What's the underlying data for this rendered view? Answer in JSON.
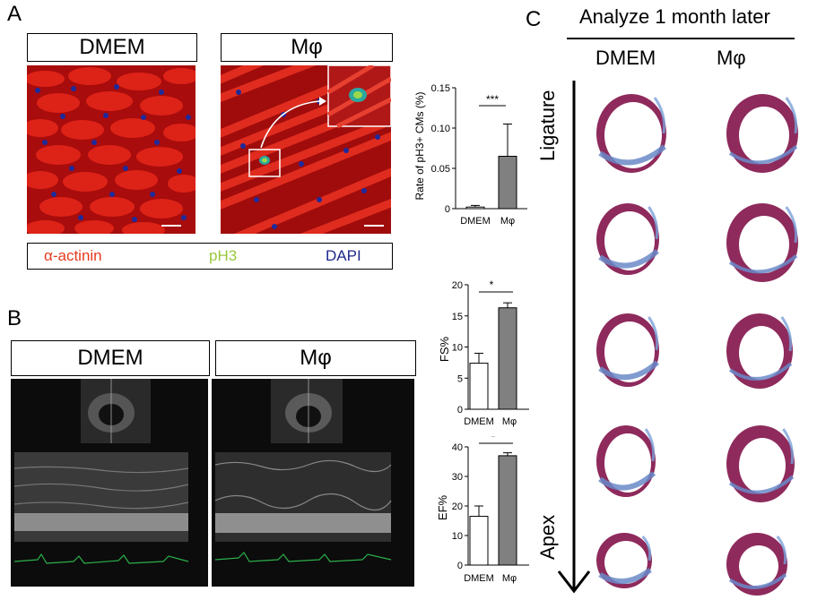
{
  "panel_a": {
    "letter": "A",
    "dmem_label": "DMEM",
    "mphi_label": "Mφ",
    "legend": {
      "alpha_actinin": "α-actinin",
      "ph3": "pH3",
      "dapi": "DAPI"
    },
    "colors": {
      "alpha_actinin": "#e8391d",
      "ph3": "#9ac83c",
      "dapi": "#1d2a8c"
    },
    "chart": {
      "type": "bar",
      "ylabel": "Rate of pH3+ CMs (%)",
      "yticks": [
        "0",
        "0.05",
        "0.10",
        "0.15"
      ],
      "categories": [
        "DMEM",
        "Mφ"
      ],
      "significance": "***"
    }
  },
  "panel_b": {
    "letter": "B",
    "dmem_label": "DMEM",
    "mphi_label": "Mφ",
    "fs_chart": {
      "type": "bar",
      "ylabel": "FS%",
      "yticks": [
        "0",
        "5",
        "10",
        "15",
        "20"
      ],
      "categories": [
        "DMEM",
        "Mφ"
      ],
      "significance": "*"
    },
    "ef_chart": {
      "type": "bar",
      "ylabel": "EF%",
      "yticks": [
        "0",
        "10",
        "20",
        "30",
        "40"
      ],
      "categories": [
        "DMEM",
        "Mφ"
      ],
      "significance": "*"
    }
  },
  "panel_c": {
    "letter": "C",
    "title": "Analyze 1 month later",
    "col_dmem": "DMEM",
    "col_mphi": "Mφ",
    "axis_top": "Ligature",
    "axis_bottom": "Apex"
  },
  "chart_data": [
    {
      "type": "bar",
      "ylabel": "Rate of pH3+ CMs (%)",
      "categories": [
        "DMEM",
        "Mφ"
      ],
      "values": [
        0.002,
        0.065
      ],
      "errors": [
        0.002,
        0.04
      ],
      "ylim": [
        0,
        0.15
      ],
      "annotation": "***"
    },
    {
      "type": "bar",
      "ylabel": "FS%",
      "categories": [
        "DMEM",
        "Mφ"
      ],
      "values": [
        7.4,
        16.3
      ],
      "errors": [
        1.6,
        0.8
      ],
      "ylim": [
        0,
        20
      ],
      "annotation": "*"
    },
    {
      "type": "bar",
      "ylabel": "EF%",
      "categories": [
        "DMEM",
        "Mφ"
      ],
      "values": [
        16.5,
        37
      ],
      "errors": [
        3.5,
        1
      ],
      "ylim": [
        0,
        40
      ],
      "annotation": "*"
    }
  ]
}
